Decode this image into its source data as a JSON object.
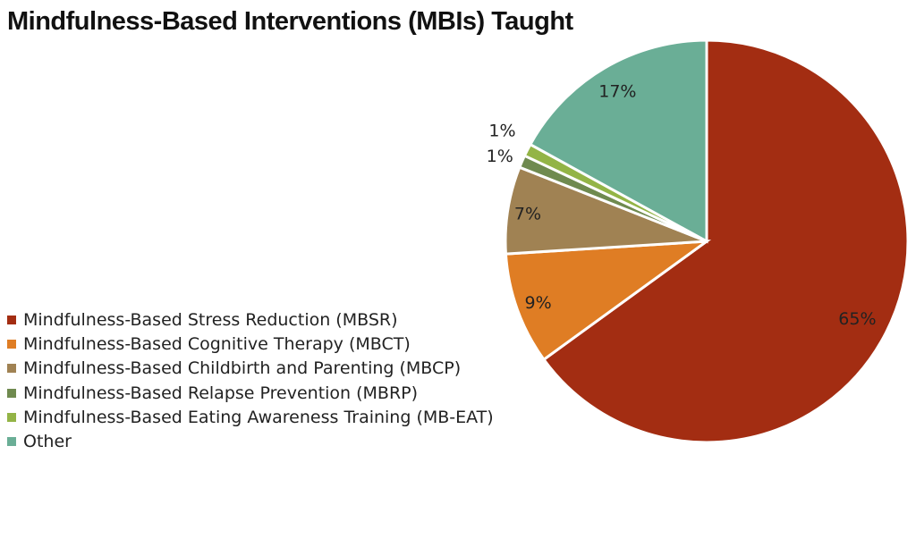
{
  "chart_data": {
    "type": "pie",
    "title": "Mindfulness-Based Interventions (MBIs) Taught",
    "legend_position": "left-bottom",
    "slices": [
      {
        "label": "Mindfulness-Based Stress Reduction (MBSR)",
        "value": 65,
        "display": "65%",
        "color": "#a32d12"
      },
      {
        "label": "Mindfulness-Based Cognitive Therapy (MBCT)",
        "value": 9,
        "display": "9%",
        "color": "#df7d24"
      },
      {
        "label": "Mindfulness-Based Childbirth and Parenting (MBCP)",
        "value": 7,
        "display": "7%",
        "color": "#a08253"
      },
      {
        "label": "Mindfulness-Based Relapse Prevention (MBRP)",
        "value": 1,
        "display": "1%",
        "color": "#6f8a4f"
      },
      {
        "label": "Mindfulness-Based Eating Awareness Training (MB-EAT)",
        "value": 1,
        "display": "1%",
        "color": "#93b446"
      },
      {
        "label": "Other",
        "value": 17,
        "display": "17%",
        "color": "#6aae96"
      }
    ]
  }
}
